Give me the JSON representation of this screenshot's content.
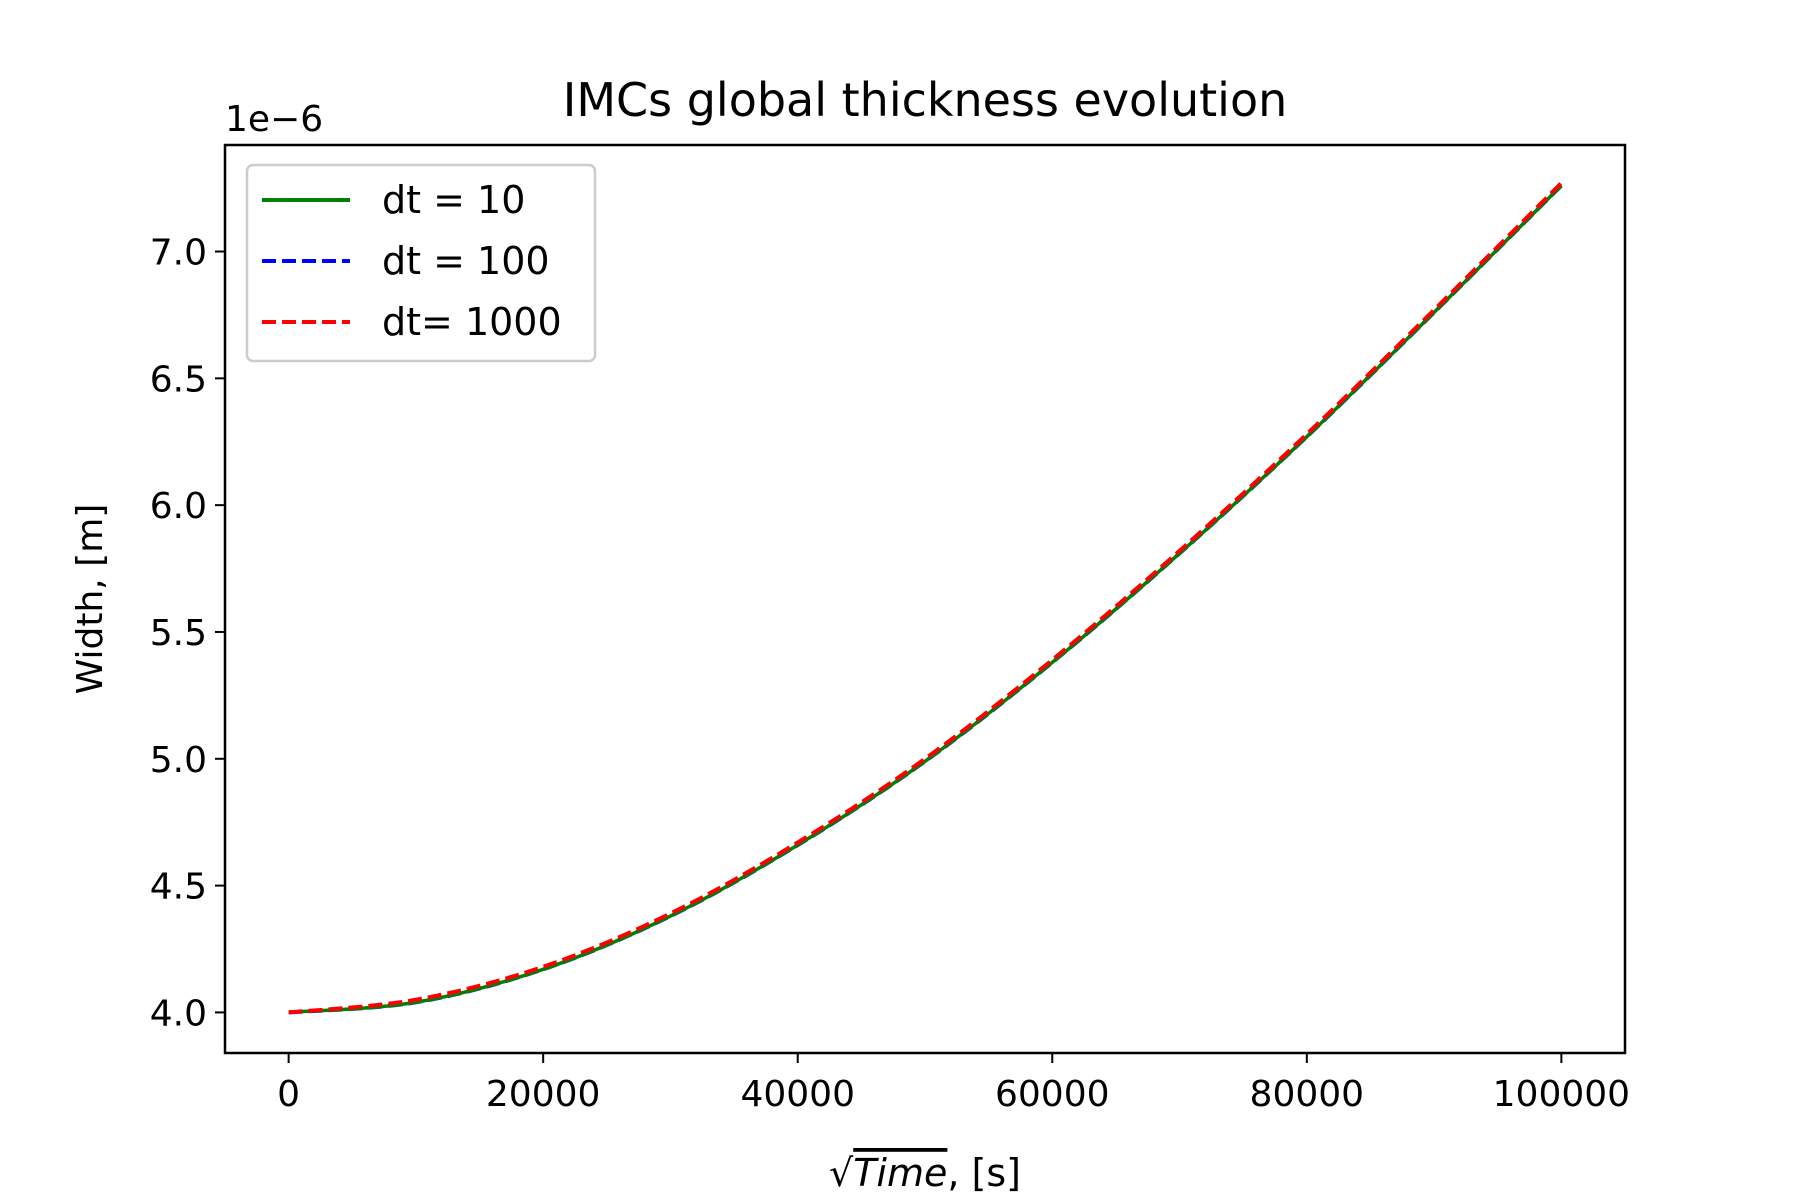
{
  "chart_data": {
    "type": "line",
    "title": "IMCs global thickness evolution",
    "xlabel": {
      "prefix": "√",
      "symbol": "Time",
      "suffix": ", [s]"
    },
    "ylabel": "Width, [m]",
    "y_offset_label": "1e−6",
    "xlim": [
      -5000,
      105000
    ],
    "ylim": [
      3.84,
      7.42
    ],
    "y_multiplier": 1e-06,
    "xticks": [
      0,
      20000,
      40000,
      60000,
      80000,
      100000
    ],
    "xtick_labels": [
      "0",
      "20000",
      "40000",
      "60000",
      "80000",
      "100000"
    ],
    "yticks": [
      4.0,
      4.5,
      5.0,
      5.5,
      6.0,
      6.5,
      7.0
    ],
    "ytick_labels": [
      "4.0",
      "4.5",
      "5.0",
      "5.5",
      "6.0",
      "6.5",
      "7.0"
    ],
    "grid": false,
    "legend_position": "top-left",
    "x": [
      0,
      10000,
      20000,
      30000,
      40000,
      50000,
      60000,
      70000,
      80000,
      90000,
      100000
    ],
    "series": [
      {
        "name": "dt = 10",
        "color": "#008000",
        "style": "solid",
        "values": [
          4.0,
          4.04,
          4.17,
          4.38,
          4.66,
          4.99,
          5.38,
          5.81,
          6.27,
          6.76,
          7.26
        ]
      },
      {
        "name": "dt = 100",
        "color": "#0000ff",
        "style": "dashed",
        "values": [
          4.0,
          4.04,
          4.17,
          4.38,
          4.66,
          4.99,
          5.38,
          5.81,
          6.27,
          6.76,
          7.26
        ]
      },
      {
        "name": "dt= 1000",
        "color": "#ff0000",
        "style": "dashed",
        "values": [
          4.0,
          4.05,
          4.18,
          4.39,
          4.67,
          5.0,
          5.39,
          5.82,
          6.28,
          6.77,
          7.27
        ]
      }
    ]
  }
}
